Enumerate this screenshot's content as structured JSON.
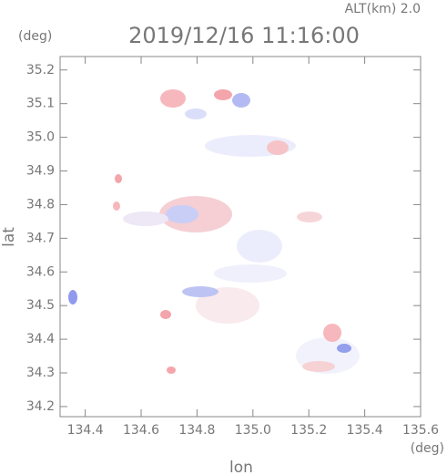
{
  "chart_data": {
    "type": "radar-map",
    "title": "2019/12/16 11:16:00",
    "annotation": "ALT(km) 2.0",
    "y_unit": "(deg)",
    "x_unit": "(deg)",
    "x_label": "lon",
    "y_label": "lat",
    "xlim": [
      134.31,
      135.6
    ],
    "ylim": [
      34.17,
      35.24
    ],
    "xticks": [
      134.4,
      134.6,
      134.8,
      {
        "value": 135.0,
        "label": "135.0"
      },
      135.2,
      135.4,
      135.6
    ],
    "yticks": [
      34.2,
      34.3,
      34.4,
      34.5,
      34.6,
      34.7,
      34.8,
      34.9,
      {
        "value": 35.0,
        "label": "35.0"
      },
      35.1,
      35.2
    ]
  }
}
